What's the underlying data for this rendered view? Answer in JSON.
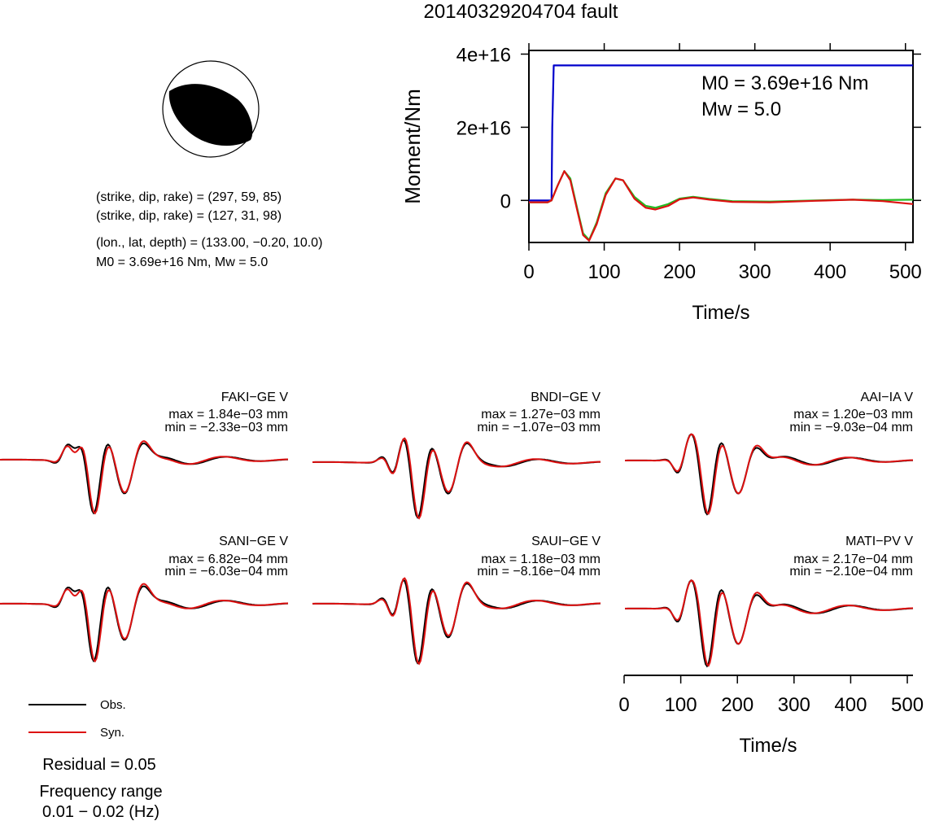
{
  "figure": {
    "title": "20140329204704 fault",
    "info_lines": [
      "(strike, dip, rake) = (297, 59, 85)",
      "(strike, dip, rake) = (127, 31, 98)",
      "(lon., lat, depth) = (133.00, −0.20, 10.0)",
      "M0 = 3.69e+16 Nm, Mw = 5.0"
    ],
    "moment_annotations": [
      "M0 = 3.69e+16 Nm",
      "Mw = 5.0"
    ],
    "residual": "Residual = 0.05",
    "freq_label": "Frequency range",
    "freq_value": "0.01 − 0.02 (Hz)",
    "legend": [
      {
        "label": "Obs.",
        "color": "#000000"
      },
      {
        "label": "Syn.",
        "color": "#dd1111"
      }
    ]
  },
  "chart_data": [
    {
      "type": "line",
      "title": "",
      "xlabel": "Time/s",
      "ylabel": "Moment/Nm",
      "xlim": [
        0,
        510
      ],
      "ylim": [
        -1.15e+16,
        4.1e+16
      ],
      "xticks": [
        0,
        100,
        200,
        300,
        400,
        500
      ],
      "xtick_labels": [
        "0",
        "100",
        "200",
        "300",
        "400",
        "500"
      ],
      "yticks": [
        0,
        2e+16,
        4e+16
      ],
      "ytick_labels": [
        "0",
        "2e+16",
        "4e+16"
      ],
      "series": [
        {
          "color": "#0000cc",
          "points": [
            [
              0,
              0
            ],
            [
              30,
              0
            ],
            [
              31,
              2e+16
            ],
            [
              33,
              3.69e+16
            ],
            [
              510,
              3.69e+16
            ]
          ]
        },
        {
          "color": "#22bb22",
          "points": [
            [
              0,
              -500000000000000.0
            ],
            [
              25,
              -500000000000000.0
            ],
            [
              30,
              0
            ],
            [
              38,
              4000000000000000.0
            ],
            [
              47,
              8000000000000000.0
            ],
            [
              55,
              6000000000000000.0
            ],
            [
              65,
              -3000000000000000.0
            ],
            [
              72,
              -9000000000000000.0
            ],
            [
              80,
              -1.08e+16
            ],
            [
              90,
              -6000000000000000.0
            ],
            [
              102,
              2000000000000000.0
            ],
            [
              115,
              6000000000000000.0
            ],
            [
              125,
              5500000000000000.0
            ],
            [
              140,
              1000000000000000.0
            ],
            [
              155,
              -1500000000000000.0
            ],
            [
              168,
              -2000000000000000.0
            ],
            [
              185,
              -1000000000000000.0
            ],
            [
              200,
              500000000000000.0
            ],
            [
              218,
              1000000000000000.0
            ],
            [
              240,
              400000000000000.0
            ],
            [
              270,
              -200000000000000.0
            ],
            [
              320,
              -300000000000000.0
            ],
            [
              380,
              0
            ],
            [
              430,
              200000000000000.0
            ],
            [
              470,
              100000000000000.0
            ],
            [
              510,
              200000000000000.0
            ]
          ]
        },
        {
          "color": "#dd1111",
          "points": [
            [
              0,
              -500000000000000.0
            ],
            [
              25,
              -500000000000000.0
            ],
            [
              30,
              0
            ],
            [
              38,
              4000000000000000.0
            ],
            [
              47,
              8000000000000000.0
            ],
            [
              55,
              5500000000000000.0
            ],
            [
              65,
              -3500000000000000.0
            ],
            [
              72,
              -9500000000000000.0
            ],
            [
              80,
              -1.1e+16
            ],
            [
              90,
              -6500000000000000.0
            ],
            [
              102,
              1500000000000000.0
            ],
            [
              115,
              6000000000000000.0
            ],
            [
              125,
              5500000000000000.0
            ],
            [
              140,
              500000000000000.0
            ],
            [
              155,
              -2000000000000000.0
            ],
            [
              168,
              -2500000000000000.0
            ],
            [
              185,
              -1500000000000000.0
            ],
            [
              200,
              300000000000000.0
            ],
            [
              218,
              800000000000000.0
            ],
            [
              240,
              200000000000000.0
            ],
            [
              270,
              -400000000000000.0
            ],
            [
              320,
              -500000000000000.0
            ],
            [
              380,
              -100000000000000.0
            ],
            [
              430,
              200000000000000.0
            ],
            [
              470,
              -200000000000000.0
            ],
            [
              510,
              -1000000000000000.0
            ]
          ]
        }
      ]
    }
  ],
  "waveforms": {
    "xlabel": "Time/s",
    "xlim": [
      0,
      510
    ],
    "xticks": [
      0,
      100,
      200,
      300,
      400,
      500
    ],
    "xtick_labels": [
      "0",
      "100",
      "200",
      "300",
      "400",
      "500"
    ],
    "stations": [
      {
        "name": "FAKI−GE V",
        "max": "max = 1.84e−03 mm",
        "min": "min = −2.33e−03 mm"
      },
      {
        "name": "BNDI−GE V",
        "max": "max = 1.27e−03 mm",
        "min": "min = −1.07e−03 mm"
      },
      {
        "name": "AAI−IA V",
        "max": "max = 1.20e−03 mm",
        "min": "min = −9.03e−04 mm"
      },
      {
        "name": "SANI−GE V",
        "max": "max = 6.82e−04 mm",
        "min": "min = −6.03e−04 mm"
      },
      {
        "name": "SAUI−GE V",
        "max": "max = 1.18e−03 mm",
        "min": "min = −8.16e−04 mm"
      },
      {
        "name": "MATI−PV V",
        "max": "max = 2.17e−04 mm",
        "min": "min = −2.10e−04 mm"
      }
    ]
  },
  "colors": {
    "obs": "#000000",
    "syn": "#dd1111",
    "moment_rate": "#0000cc",
    "moment_green": "#22bb22"
  }
}
